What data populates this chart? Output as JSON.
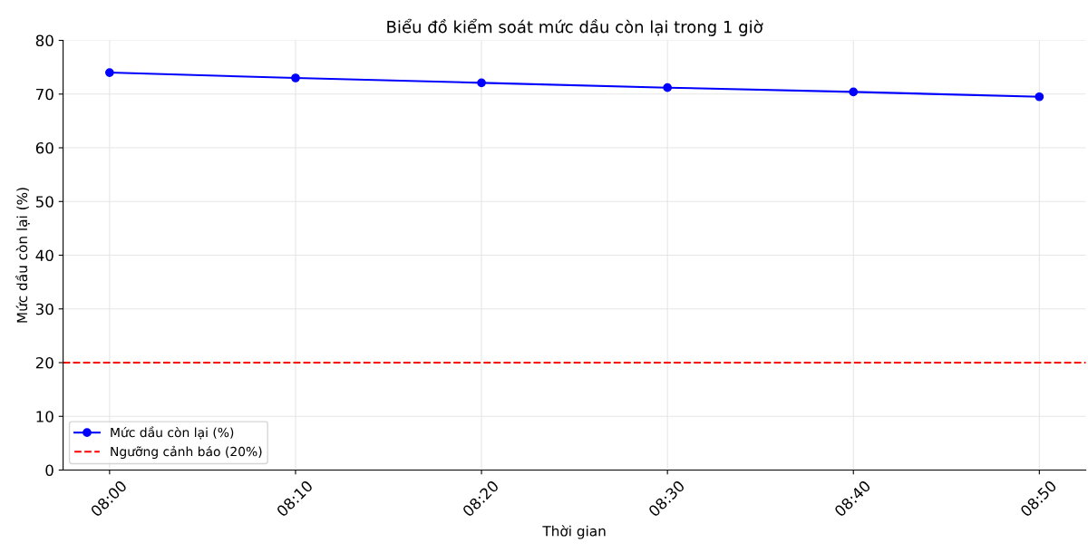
{
  "chart_data": {
    "type": "line",
    "title": "Biểu đồ kiểm soát mức dầu còn lại trong 1 giờ",
    "xlabel": "Thời gian",
    "ylabel": "Mức dầu còn lại (%)",
    "categories": [
      "08:00",
      "08:10",
      "08:20",
      "08:30",
      "08:40",
      "08:50"
    ],
    "series": [
      {
        "name": "Mức dầu còn lại (%)",
        "color": "#0000ff",
        "values": [
          74,
          73,
          72.1,
          71.2,
          70.4,
          69.5
        ]
      }
    ],
    "ref_lines": [
      {
        "axis": "y",
        "value": 20,
        "label": "Ngưỡng cảnh báo (20%)",
        "color": "#ff0000",
        "line_style": "dashed"
      }
    ],
    "ylim": [
      0,
      80
    ],
    "yticks": [
      0,
      10,
      20,
      30,
      40,
      50,
      60,
      70,
      80
    ],
    "grid": true,
    "legend": "bottom left",
    "marker": "circle",
    "line_style": "solid"
  }
}
